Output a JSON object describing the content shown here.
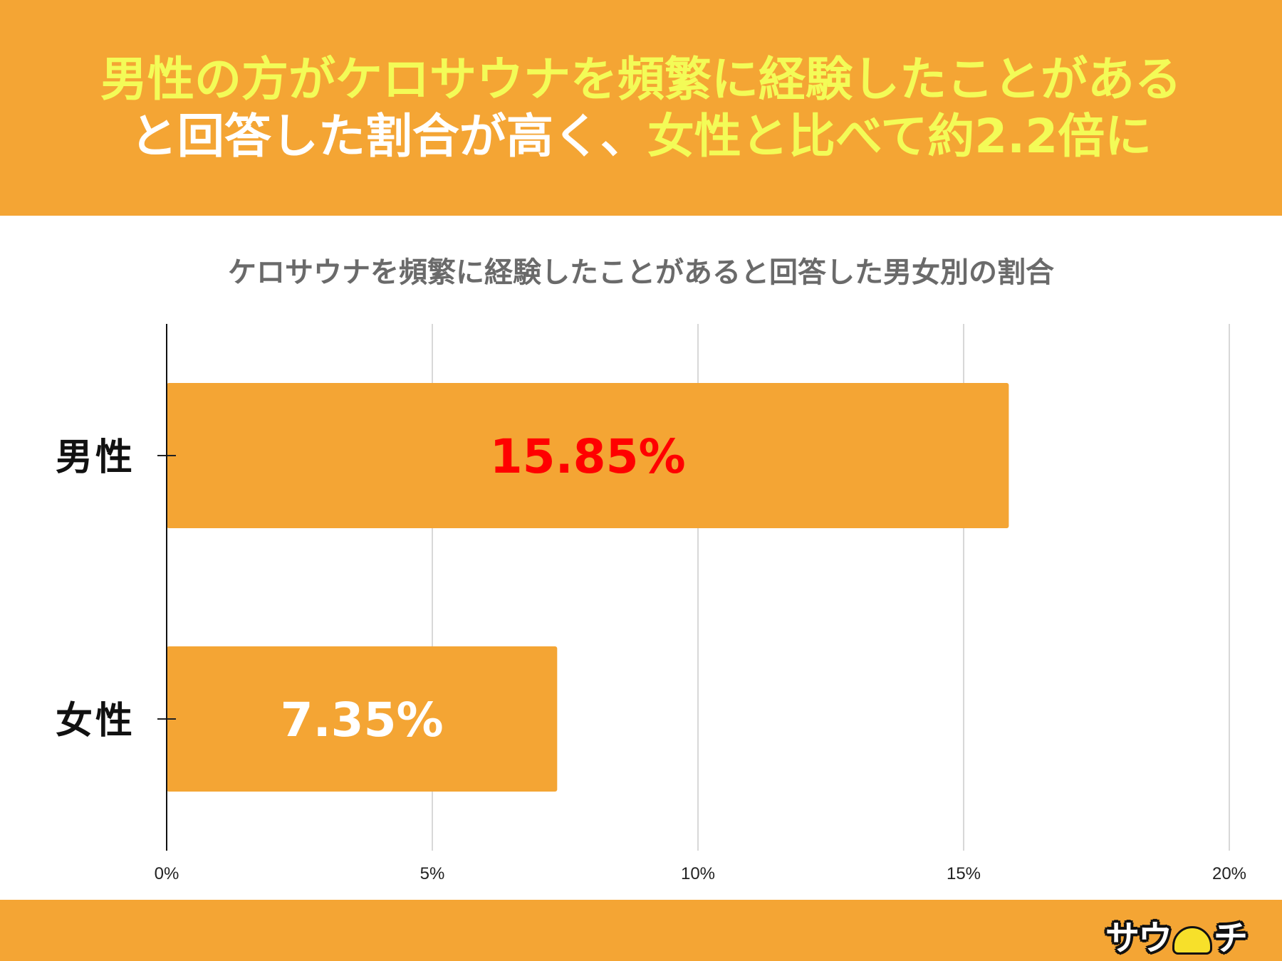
{
  "headline": {
    "line1": "男性の方がケロサウナを頻繁に経験したことがある",
    "line2_white": "と回答した割合が高く、",
    "line2_yellow": "女性と比べて約2.2倍に"
  },
  "colors": {
    "header_bg": "#f4a534",
    "headline_yellow": "#f3fb57",
    "bar": "#f4a534",
    "highlight_label": "#ff0000",
    "label_white": "#ffffff"
  },
  "chart_data": {
    "type": "bar",
    "orientation": "horizontal",
    "title": "ケロサウナを頻繁に経験したことがあると回答した男女別の割合",
    "categories": [
      "男性",
      "女性"
    ],
    "values": [
      15.85,
      7.35
    ],
    "data_labels": [
      "15.85%",
      "7.35%"
    ],
    "xlim": [
      0,
      20
    ],
    "x_ticks": [
      0,
      5,
      10,
      15,
      20
    ],
    "x_tick_labels": [
      "0%",
      "5%",
      "10%",
      "15%",
      "20%"
    ],
    "grid": true,
    "legend": "none"
  },
  "footer": {
    "logo_left": "サウ",
    "logo_icon": "sauna-hat-icon",
    "logo_right": "チ"
  }
}
